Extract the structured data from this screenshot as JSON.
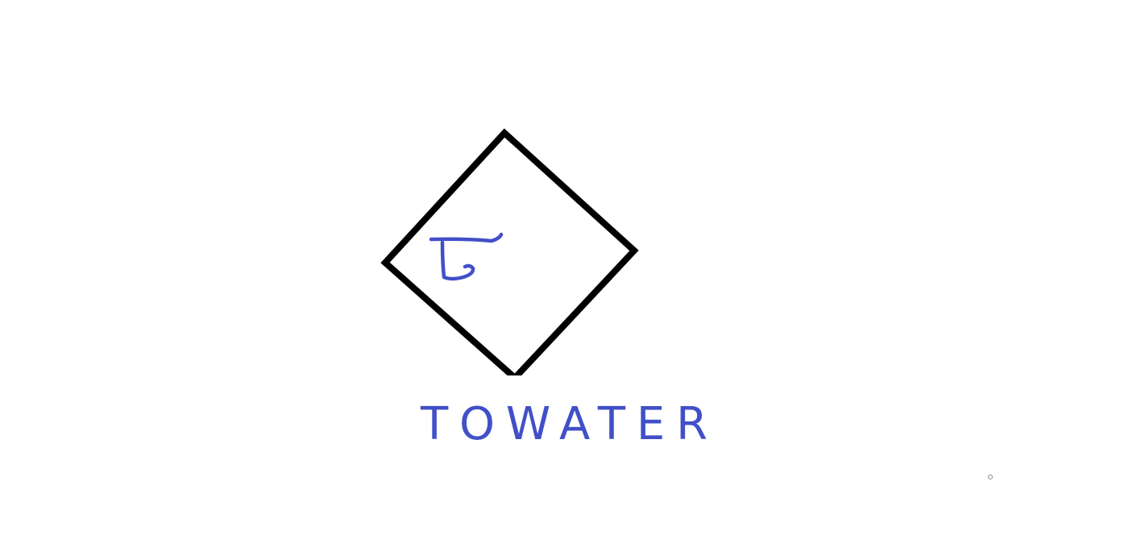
{
  "label": "TOWATER"
}
